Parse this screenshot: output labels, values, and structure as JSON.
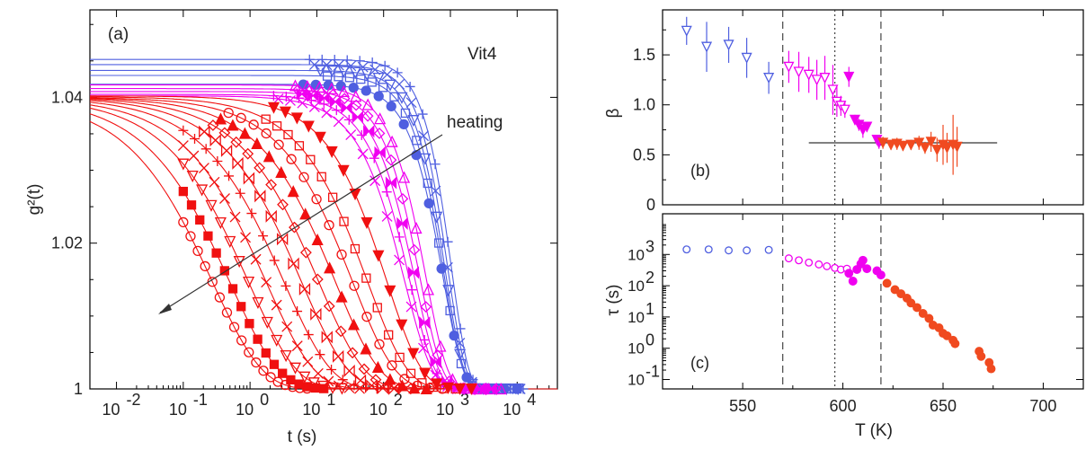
{
  "colors": {
    "blue": "#4f5fe0",
    "magenta": "#f000f0",
    "red": "#f01010",
    "orange": "#f04a20",
    "line": "#000000"
  },
  "chart_data": [
    {
      "id": "a",
      "type": "line",
      "panel_label": "(a)",
      "series_note": "Vit4",
      "annotation": "heating",
      "xlabel": "t  (s)",
      "ylabel": "g²(t)",
      "xscale": "log",
      "xlim": [
        0.004,
        40000
      ],
      "ylim": [
        1.0,
        1.052
      ],
      "x_ticks": [
        0.01,
        0.1,
        1,
        10,
        100,
        1000,
        10000
      ],
      "x_tick_labels": [
        "10",
        "10",
        "10",
        "10",
        "10",
        "10",
        "10"
      ],
      "x_tick_exps": [
        "-2",
        "-1",
        "0",
        "1",
        "2",
        "3",
        "4"
      ],
      "y_ticks": [
        1.0,
        1.02,
        1.04
      ],
      "y_tick_labels": [
        "1",
        "1.02",
        "1.04"
      ],
      "series": [
        {
          "color": "blue",
          "contrast": 0.0452,
          "tau": 1550,
          "beta": 1.72
        },
        {
          "color": "blue",
          "contrast": 0.0445,
          "tau": 1400,
          "beta": 1.65
        },
        {
          "color": "blue",
          "contrast": 0.0437,
          "tau": 1300,
          "beta": 1.6
        },
        {
          "color": "blue",
          "contrast": 0.043,
          "tau": 1250,
          "beta": 1.55
        },
        {
          "color": "blue",
          "contrast": 0.0418,
          "tau": 1250,
          "beta": 1.45
        },
        {
          "color": "magenta",
          "contrast": 0.0417,
          "tau": 720,
          "beta": 1.35
        },
        {
          "color": "magenta",
          "contrast": 0.0412,
          "tau": 600,
          "beta": 1.3
        },
        {
          "color": "magenta",
          "contrast": 0.0408,
          "tau": 520,
          "beta": 1.22
        },
        {
          "color": "magenta",
          "contrast": 0.0404,
          "tau": 450,
          "beta": 1.15
        },
        {
          "color": "magenta",
          "contrast": 0.0402,
          "tau": 400,
          "beta": 1.05
        },
        {
          "color": "red",
          "contrast": 0.0402,
          "tau": 260,
          "beta": 0.82
        },
        {
          "color": "red",
          "contrast": 0.0401,
          "tau": 150,
          "beta": 0.72
        },
        {
          "color": "red",
          "contrast": 0.04,
          "tau": 95,
          "beta": 0.68
        },
        {
          "color": "red",
          "contrast": 0.04,
          "tau": 55,
          "beta": 0.65
        },
        {
          "color": "red",
          "contrast": 0.04,
          "tau": 32,
          "beta": 0.63
        },
        {
          "color": "red",
          "contrast": 0.04,
          "tau": 18,
          "beta": 0.62
        },
        {
          "color": "red",
          "contrast": 0.04,
          "tau": 10,
          "beta": 0.61
        },
        {
          "color": "red",
          "contrast": 0.04,
          "tau": 5.5,
          "beta": 0.6
        },
        {
          "color": "red",
          "contrast": 0.04,
          "tau": 3.0,
          "beta": 0.6
        },
        {
          "color": "red",
          "contrast": 0.04,
          "tau": 1.6,
          "beta": 0.59
        },
        {
          "color": "red",
          "contrast": 0.04,
          "tau": 0.9,
          "beta": 0.58
        }
      ]
    },
    {
      "id": "b",
      "type": "scatter",
      "panel_label": "(b)",
      "ylabel": "β",
      "xlim": [
        510,
        720
      ],
      "ylim": [
        0,
        1.95
      ],
      "y_ticks": [
        0,
        0.5,
        1.0,
        1.5
      ],
      "y_tick_labels": [
        "0",
        "0.5",
        "1.0",
        "1.5"
      ],
      "reference_line": {
        "y": 0.62,
        "x": [
          583,
          677
        ]
      },
      "vlines": [
        {
          "x": 570,
          "style": "dashed"
        },
        {
          "x": 596,
          "style": "dotted"
        },
        {
          "x": 619,
          "style": "dashed"
        }
      ],
      "series": [
        {
          "color": "blue",
          "marker": "open-triangle-down",
          "points": [
            [
              522,
              1.74,
              0.14
            ],
            [
              532,
              1.58,
              0.25
            ],
            [
              543,
              1.6,
              0.18
            ],
            [
              552,
              1.47,
              0.2
            ],
            [
              563,
              1.27,
              0.16
            ]
          ]
        },
        {
          "color": "magenta",
          "marker": "open-triangle-down",
          "points": [
            [
              573,
              1.38,
              0.16
            ],
            [
              578,
              1.33,
              0.2
            ],
            [
              583,
              1.3,
              0.18
            ],
            [
              587,
              1.25,
              0.2
            ],
            [
              591,
              1.27,
              0.22
            ],
            [
              595,
              1.15,
              0.25
            ],
            [
              597,
              1.03,
              0.15
            ],
            [
              599,
              0.99,
              0.1
            ],
            [
              601,
              0.95,
              0.08
            ]
          ]
        },
        {
          "color": "magenta",
          "marker": "filled-triangle-down",
          "points": [
            [
              603,
              1.28,
              0.1
            ],
            [
              606,
              0.85,
              0.05
            ],
            [
              608,
              0.8,
              0.06
            ],
            [
              610,
              0.75,
              0.08
            ],
            [
              612,
              0.78,
              0.05
            ],
            [
              617,
              0.65,
              0.05
            ],
            [
              618,
              0.62,
              0.06
            ]
          ]
        },
        {
          "color": "orange",
          "marker": "filled-triangle-down",
          "points": [
            [
              620,
              0.62,
              0.06
            ],
            [
              624,
              0.6,
              0.05
            ],
            [
              627,
              0.61,
              0.06
            ],
            [
              630,
              0.59,
              0.05
            ],
            [
              634,
              0.6,
              0.05
            ],
            [
              638,
              0.62,
              0.07
            ],
            [
              641,
              0.57,
              0.06
            ],
            [
              644,
              0.63,
              0.1
            ],
            [
              647,
              0.55,
              0.12
            ],
            [
              650,
              0.6,
              0.2
            ],
            [
              652,
              0.57,
              0.15
            ],
            [
              655,
              0.6,
              0.3
            ],
            [
              657,
              0.58,
              0.2
            ]
          ]
        }
      ]
    },
    {
      "id": "c",
      "type": "scatter",
      "panel_label": "(c)",
      "xlabel": "T (K)",
      "ylabel": "τ (s)",
      "xlim": [
        510,
        720
      ],
      "x_ticks": [
        550,
        600,
        650,
        700
      ],
      "x_tick_labels": [
        "550",
        "600",
        "650",
        "700"
      ],
      "yscale": "log",
      "ylim": [
        0.05,
        20000
      ],
      "y_ticks": [
        0.1,
        1,
        10,
        100,
        1000
      ],
      "y_tick_labels": [
        "10",
        "10",
        "10",
        "10",
        "10"
      ],
      "y_tick_exps": [
        "-1",
        "0",
        "1",
        "2",
        "3"
      ],
      "vlines": [
        {
          "x": 570,
          "style": "dashed"
        },
        {
          "x": 596,
          "style": "dotted"
        },
        {
          "x": 619,
          "style": "dashed"
        }
      ],
      "series": [
        {
          "color": "blue",
          "marker": "open-circle",
          "points": [
            [
              522,
              1450
            ],
            [
              533,
              1450
            ],
            [
              543,
              1350
            ],
            [
              552,
              1350
            ],
            [
              563,
              1400
            ]
          ]
        },
        {
          "color": "magenta",
          "marker": "open-circle",
          "points": [
            [
              573,
              750
            ],
            [
              578,
              650
            ],
            [
              583,
              550
            ],
            [
              588,
              480
            ],
            [
              592,
              420
            ],
            [
              596,
              370
            ],
            [
              599,
              330
            ],
            [
              602,
              350
            ]
          ]
        },
        {
          "color": "magenta",
          "marker": "filled-circle",
          "points": [
            [
              603,
              250
            ],
            [
              605,
              140
            ],
            [
              607,
              330
            ],
            [
              609,
              500
            ],
            [
              610,
              650
            ],
            [
              612,
              350
            ],
            [
              617,
              300
            ],
            [
              619,
              220
            ]
          ]
        },
        {
          "color": "orange",
          "marker": "filled-circle",
          "points": [
            [
              622,
              120
            ],
            [
              626,
              75
            ],
            [
              629,
              55
            ],
            [
              632,
              40
            ],
            [
              634,
              28
            ],
            [
              637,
              20
            ],
            [
              640,
              13
            ],
            [
              643,
              9
            ],
            [
              645,
              5.5
            ],
            [
              648,
              4.5
            ],
            [
              650,
              3.0
            ],
            [
              652,
              2.5
            ],
            [
              655,
              1.8
            ],
            [
              656,
              1.4
            ],
            [
              668,
              0.8
            ],
            [
              669,
              0.55
            ],
            [
              673,
              0.35
            ],
            [
              674,
              0.22
            ]
          ]
        }
      ]
    }
  ]
}
